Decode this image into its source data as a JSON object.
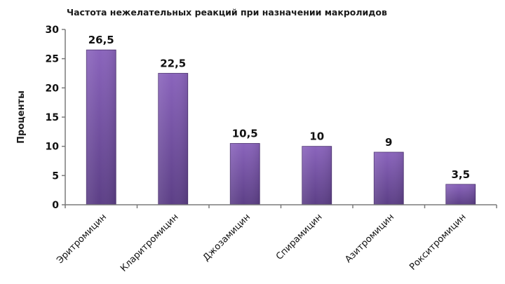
{
  "chart_data": {
    "type": "bar",
    "title": "Частота нежелательных реакций при назначении макролидов",
    "xlabel": "",
    "ylabel": "Проценты",
    "categories": [
      "Эритромицин",
      "Кларитромицин",
      "Джозамицин",
      "Спирамицин",
      "Азитромицин",
      "Рокситромицин"
    ],
    "values": [
      26.5,
      22.5,
      10.5,
      10,
      9,
      3.5
    ],
    "data_labels": [
      "26,5",
      "22,5",
      "10,5",
      "10",
      "9",
      "3,5"
    ],
    "ylim": [
      0,
      30
    ],
    "yticks": [
      0,
      5,
      10,
      15,
      20,
      25,
      30
    ],
    "grid": false,
    "legend": "none",
    "bar_color_top": "#8a64bc",
    "bar_color_bottom": "#5c3f86"
  }
}
